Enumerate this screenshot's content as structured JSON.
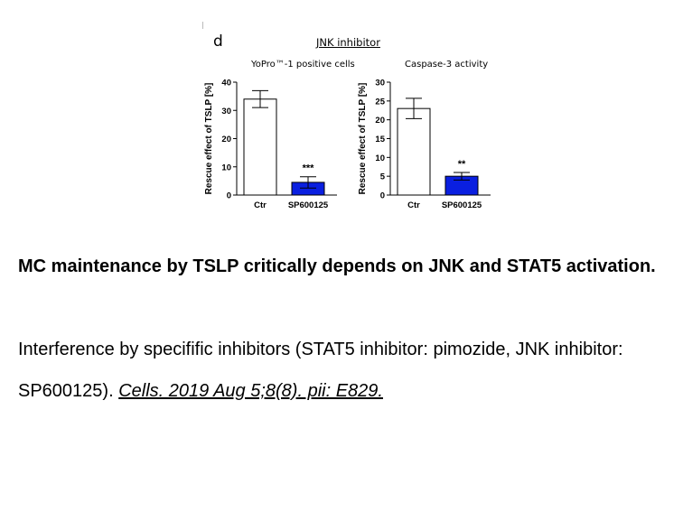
{
  "figure": {
    "panel_letter": "d",
    "title": "JNK inhibitor"
  },
  "chart_data": [
    {
      "type": "bar",
      "title": "YoPro™-1 positive cells",
      "ylabel": "Rescue effect of TSLP [%]",
      "xlabel": "",
      "categories": [
        "Ctr",
        "SP600125"
      ],
      "values": [
        34,
        4.5
      ],
      "errors": [
        3,
        2
      ],
      "significance": [
        "",
        "***"
      ],
      "bar_colors": [
        "#ffffff",
        "#0a1fe0"
      ],
      "ylim": [
        0,
        40
      ],
      "yticks": [
        0,
        10,
        20,
        30,
        40
      ],
      "grid": false
    },
    {
      "type": "bar",
      "title": "Caspase-3 activity",
      "ylabel": "Rescue effect of TSLP [%]",
      "xlabel": "",
      "categories": [
        "Ctr",
        "SP600125"
      ],
      "values": [
        23,
        5
      ],
      "errors": [
        2.7,
        1
      ],
      "significance": [
        "",
        "**"
      ],
      "bar_colors": [
        "#ffffff",
        "#0a1fe0"
      ],
      "ylim": [
        0,
        30
      ],
      "yticks": [
        0,
        5,
        10,
        15,
        20,
        25,
        30
      ],
      "grid": false
    }
  ],
  "caption": {
    "heading": "MC maintenance by TSLP critically depends on JNK and STAT5 activation.",
    "body": "Interference by specifific inhibitors (STAT5 inhibitor: pimozide, JNK inhibitor: SP600125). ",
    "citation": "Cells. 2019 Aug 5;8(8). pii: E829."
  }
}
